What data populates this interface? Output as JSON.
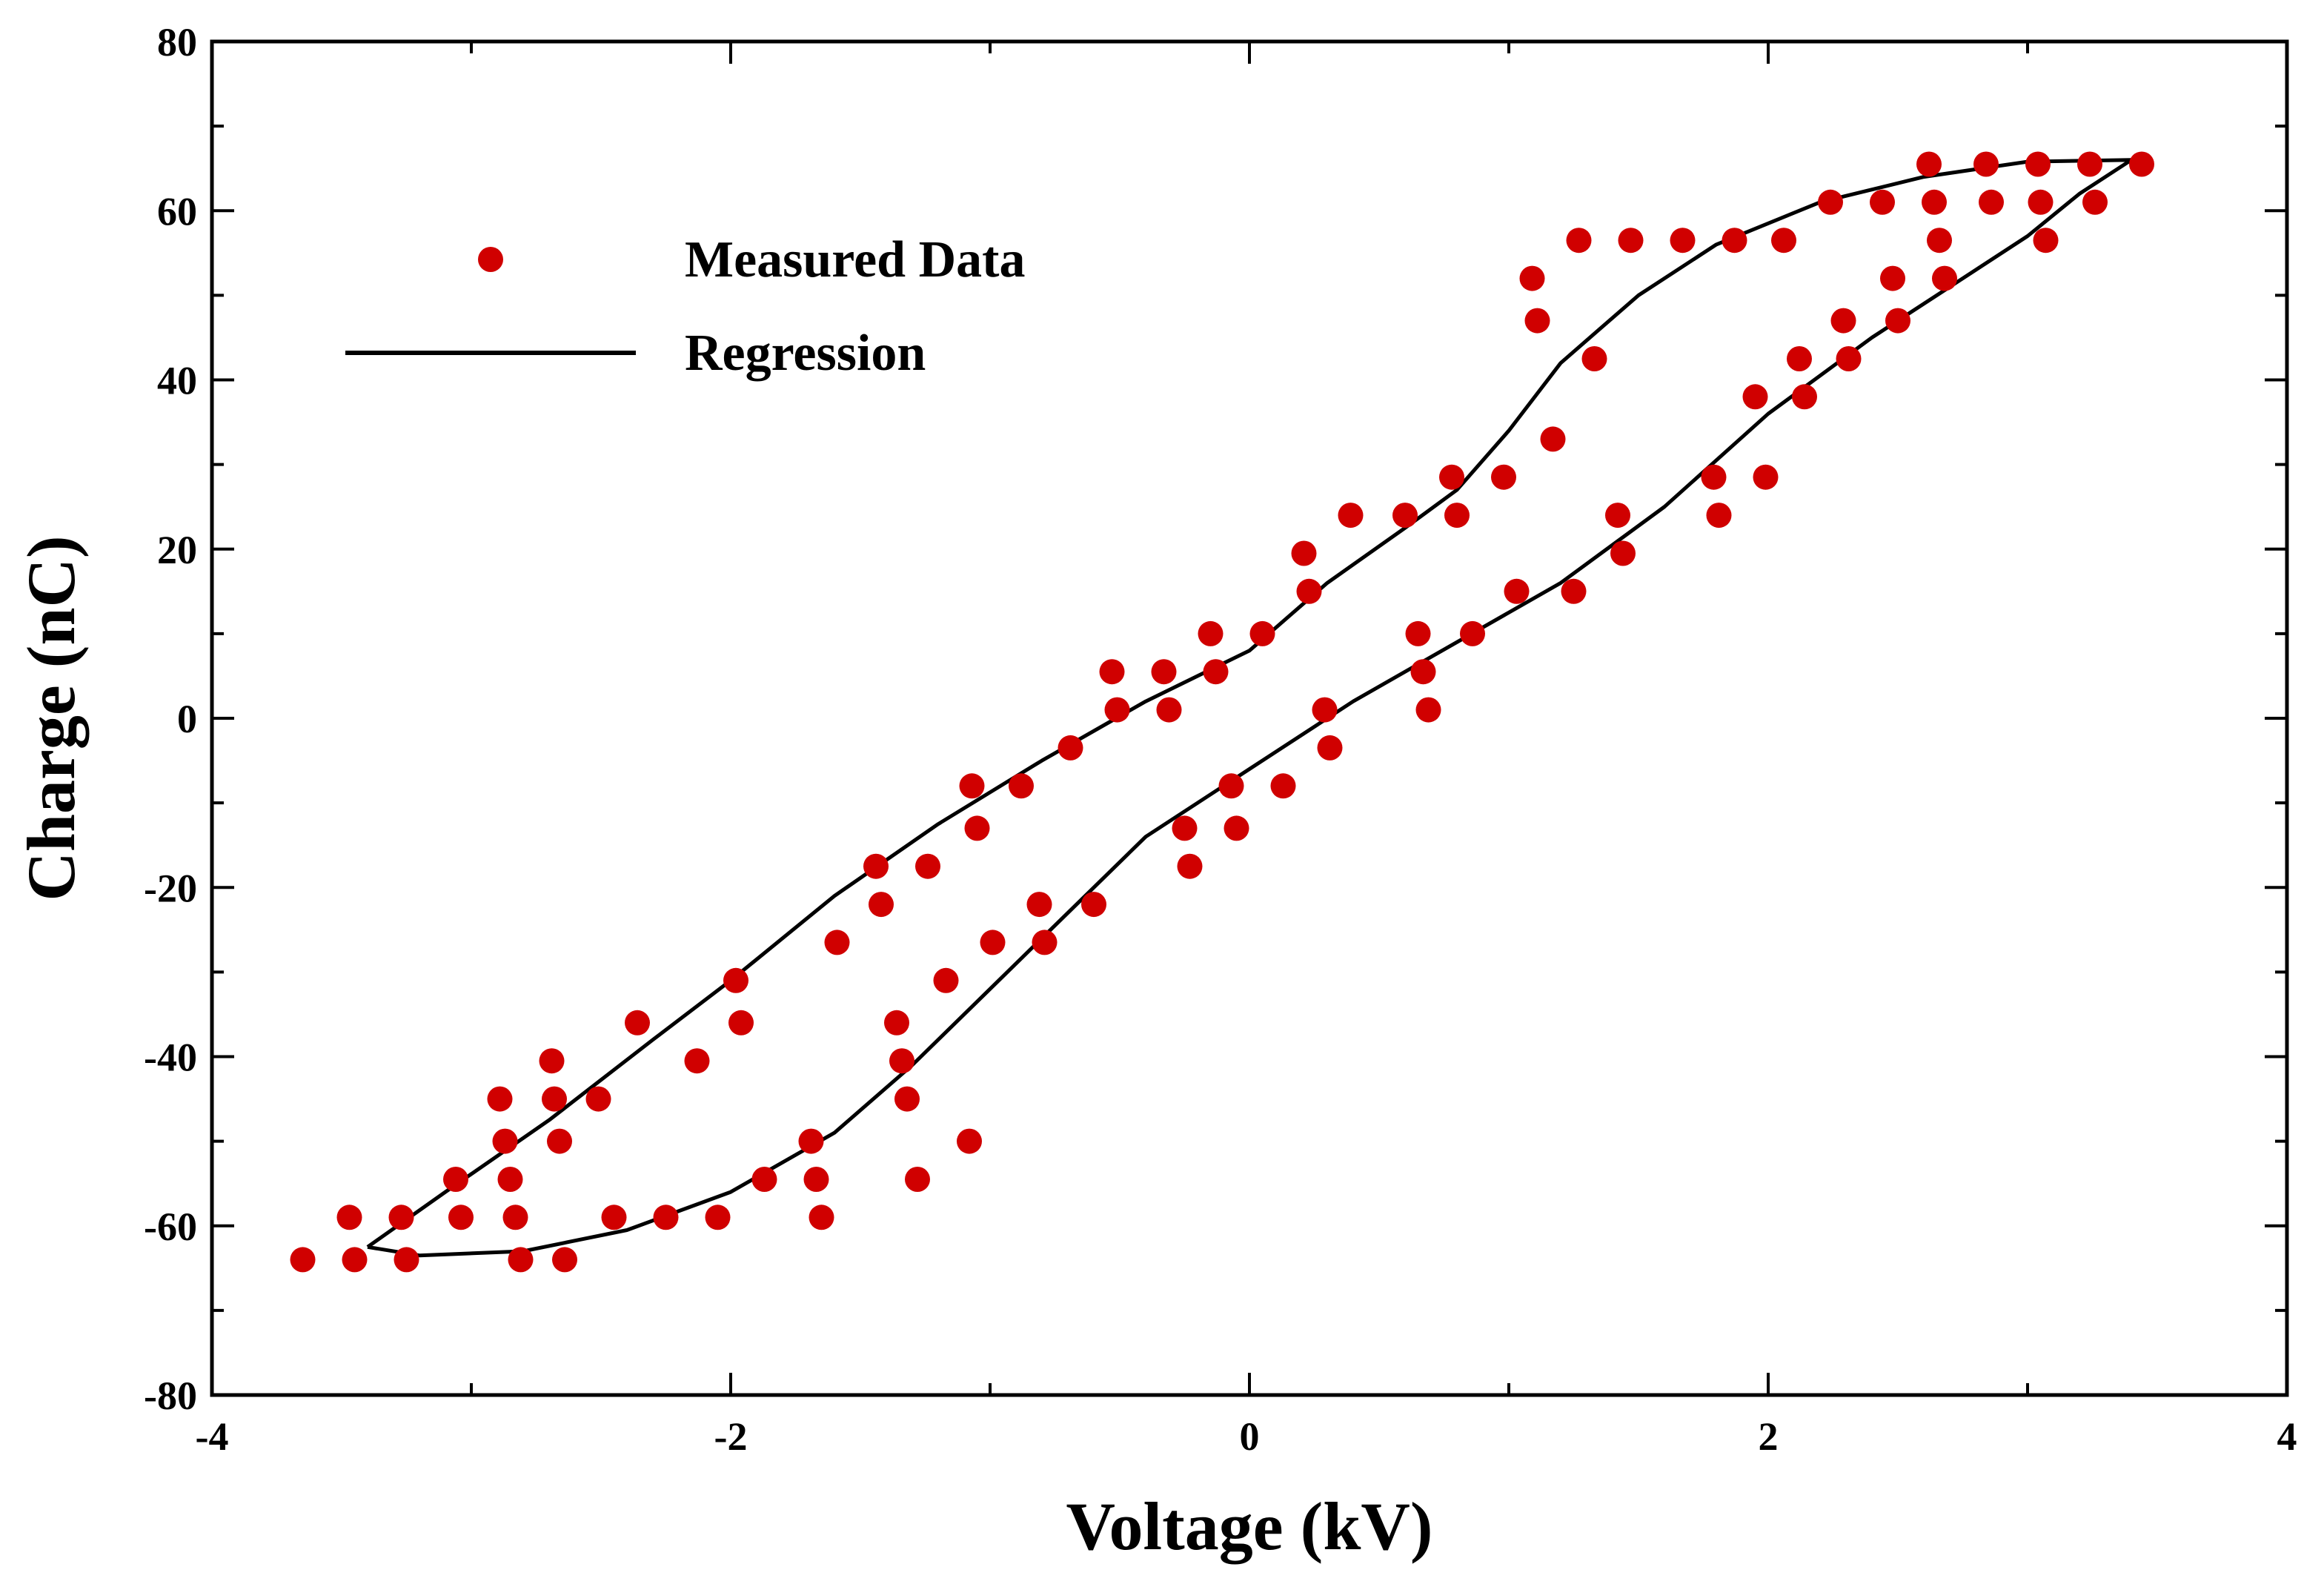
{
  "chart_data": {
    "type": "scatter",
    "xlabel": "Voltage (kV)",
    "ylabel": "Charge (nC)",
    "xlim": [
      -4,
      4
    ],
    "ylim": [
      -80,
      80
    ],
    "x_ticks": [
      -4,
      -2,
      0,
      2,
      4
    ],
    "y_ticks": [
      -80,
      -60,
      -40,
      -20,
      0,
      20,
      40,
      60,
      80
    ],
    "x_minor_step": 1,
    "y_minor_step": 10,
    "grid": false,
    "legend_position": "top-left",
    "series": [
      {
        "name": "Measured Data",
        "kind": "scatter",
        "color": "#d00000",
        "points": [
          [
            -3.65,
            -64
          ],
          [
            -3.45,
            -64
          ],
          [
            -3.47,
            -59
          ],
          [
            -3.25,
            -64
          ],
          [
            -3.27,
            -59
          ],
          [
            -3.06,
            -54.5
          ],
          [
            -3.04,
            -59
          ],
          [
            -2.89,
            -45
          ],
          [
            -2.87,
            -50
          ],
          [
            -2.85,
            -54.5
          ],
          [
            -2.83,
            -59
          ],
          [
            -2.81,
            -64
          ],
          [
            -2.69,
            -40.5
          ],
          [
            -2.68,
            -45
          ],
          [
            -2.66,
            -50
          ],
          [
            -2.64,
            -64
          ],
          [
            -2.51,
            -45
          ],
          [
            -2.45,
            -59
          ],
          [
            -2.36,
            -36
          ],
          [
            -2.25,
            -59
          ],
          [
            -2.13,
            -40.5
          ],
          [
            -2.05,
            -59
          ],
          [
            -1.98,
            -31
          ],
          [
            -1.96,
            -36
          ],
          [
            -1.87,
            -54.5
          ],
          [
            -1.69,
            -50
          ],
          [
            -1.67,
            -54.5
          ],
          [
            -1.65,
            -59
          ],
          [
            -1.59,
            -26.5
          ],
          [
            -1.44,
            -17.5
          ],
          [
            -1.42,
            -22
          ],
          [
            -1.36,
            -36
          ],
          [
            -1.34,
            -40.5
          ],
          [
            -1.32,
            -45
          ],
          [
            -1.28,
            -54.5
          ],
          [
            -1.24,
            -17.5
          ],
          [
            -1.17,
            -31
          ],
          [
            -1.08,
            -50
          ],
          [
            -1.07,
            -8
          ],
          [
            -1.05,
            -13
          ],
          [
            -0.99,
            -26.5
          ],
          [
            -0.88,
            -8
          ],
          [
            -0.81,
            -22
          ],
          [
            -0.79,
            -26.5
          ],
          [
            -0.69,
            -3.5
          ],
          [
            -0.6,
            -22
          ],
          [
            -0.53,
            5.5
          ],
          [
            -0.51,
            1
          ],
          [
            -0.33,
            5.5
          ],
          [
            -0.31,
            1
          ],
          [
            -0.25,
            -13
          ],
          [
            -0.23,
            -17.5
          ],
          [
            -0.15,
            10
          ],
          [
            -0.13,
            5.5
          ],
          [
            -0.07,
            -8
          ],
          [
            -0.05,
            -13
          ],
          [
            0.05,
            10
          ],
          [
            0.13,
            -8
          ],
          [
            0.21,
            19.5
          ],
          [
            0.23,
            15
          ],
          [
            0.29,
            1
          ],
          [
            0.31,
            -3.5
          ],
          [
            0.39,
            24
          ],
          [
            0.6,
            24
          ],
          [
            0.65,
            10
          ],
          [
            0.67,
            5.5
          ],
          [
            0.69,
            1
          ],
          [
            0.78,
            28.5
          ],
          [
            0.8,
            24
          ],
          [
            0.86,
            10
          ],
          [
            0.98,
            28.5
          ],
          [
            1.03,
            15
          ],
          [
            1.09,
            52
          ],
          [
            1.11,
            47
          ],
          [
            1.17,
            33
          ],
          [
            1.25,
            15
          ],
          [
            1.27,
            56.5
          ],
          [
            1.33,
            42.5
          ],
          [
            1.42,
            24
          ],
          [
            1.44,
            19.5
          ],
          [
            1.47,
            56.5
          ],
          [
            1.67,
            56.5
          ],
          [
            1.79,
            28.5
          ],
          [
            1.81,
            24
          ],
          [
            1.87,
            56.5
          ],
          [
            1.95,
            38
          ],
          [
            1.99,
            28.5
          ],
          [
            2.06,
            56.5
          ],
          [
            2.12,
            42.5
          ],
          [
            2.14,
            38
          ],
          [
            2.24,
            61
          ],
          [
            2.29,
            47
          ],
          [
            2.31,
            42.5
          ],
          [
            2.44,
            61
          ],
          [
            2.48,
            52
          ],
          [
            2.5,
            47
          ],
          [
            2.62,
            65.5
          ],
          [
            2.64,
            61
          ],
          [
            2.66,
            56.5
          ],
          [
            2.68,
            52
          ],
          [
            2.84,
            65.5
          ],
          [
            2.86,
            61
          ],
          [
            3.04,
            65.5
          ],
          [
            3.05,
            61
          ],
          [
            3.07,
            56.5
          ],
          [
            3.24,
            65.5
          ],
          [
            3.26,
            61
          ],
          [
            3.44,
            65.5
          ]
        ]
      },
      {
        "name": "Regression",
        "kind": "line",
        "color": "#000000",
        "points": [
          [
            -3.4,
            -62.5
          ],
          [
            -3.1,
            -56
          ],
          [
            -2.7,
            -47.5
          ],
          [
            -2.3,
            -38
          ],
          [
            -2.0,
            -31
          ],
          [
            -1.6,
            -21
          ],
          [
            -1.2,
            -12.5
          ],
          [
            -0.8,
            -5
          ],
          [
            -0.4,
            2
          ],
          [
            0,
            8
          ],
          [
            0.3,
            16
          ],
          [
            0.6,
            22.5
          ],
          [
            0.8,
            27
          ],
          [
            1.0,
            34
          ],
          [
            1.2,
            42
          ],
          [
            1.5,
            50
          ],
          [
            1.8,
            56
          ],
          [
            2.2,
            61
          ],
          [
            2.6,
            64
          ],
          [
            3.0,
            65.8
          ],
          [
            3.4,
            66
          ],
          [
            3.2,
            62
          ],
          [
            3.0,
            57
          ],
          [
            2.7,
            51
          ],
          [
            2.4,
            45
          ],
          [
            2.0,
            36
          ],
          [
            1.6,
            25
          ],
          [
            1.2,
            16
          ],
          [
            0.8,
            9
          ],
          [
            0.4,
            2
          ],
          [
            0.0,
            -6
          ],
          [
            -0.4,
            -14
          ],
          [
            -0.8,
            -26
          ],
          [
            -1.0,
            -32
          ],
          [
            -1.3,
            -41
          ],
          [
            -1.6,
            -49
          ],
          [
            -2.0,
            -56
          ],
          [
            -2.4,
            -60.5
          ],
          [
            -2.8,
            -63
          ],
          [
            -3.2,
            -63.5
          ],
          [
            -3.4,
            -62.5
          ]
        ]
      }
    ]
  }
}
